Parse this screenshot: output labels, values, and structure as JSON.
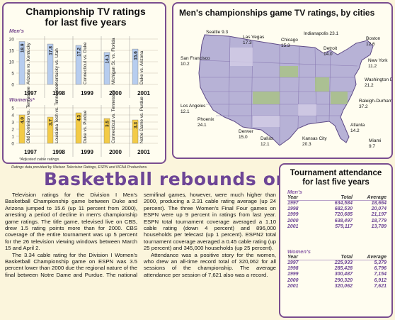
{
  "championship_chart": {
    "title_line1": "Championship TV ratings",
    "title_line2": "for last five years",
    "mens_label": "Men's",
    "womens_label": "Women's*",
    "footnote": "*Adjusted cable ratings.",
    "colors": {
      "mens_bar": "#b7cdef",
      "womens_bar": "#f3cb47",
      "accent": "#7a4d8f"
    }
  },
  "chart_data": [
    {
      "type": "bar",
      "title": "Men's",
      "categories": [
        "1997",
        "1998",
        "1999",
        "2000",
        "2001"
      ],
      "values": [
        18.9,
        17.8,
        17.2,
        14.1,
        15.6
      ],
      "data_labels": [
        "18.9",
        "17.8",
        "17.2",
        "14.1",
        "15.6"
      ],
      "matchups": [
        "Arizona vs. Kentucky",
        "Kentucky vs. Utah",
        "Connecticut vs. Duke",
        "Michigan St. vs. Florida",
        "Duke vs. Arizona"
      ],
      "yticks": [
        "20",
        "15",
        "10",
        "5",
        "0"
      ],
      "ylim": [
        0,
        20
      ],
      "grid": true
    },
    {
      "type": "bar",
      "title": "Women's*",
      "categories": [
        "1997",
        "1998",
        "1999",
        "2000",
        "2001"
      ],
      "values": [
        4.0,
        3.7,
        4.3,
        3.5,
        3.3
      ],
      "data_labels": [
        "4.0",
        "3.7",
        "4.3",
        "3.5",
        "3.3"
      ],
      "matchups": [
        "Old Dominion vs. Tennessee",
        "Louisiana Tech vs. Tennessee",
        "Duke vs. Purdue",
        "Connecticut vs. Tennessee",
        "Notre Dame vs. Purdue"
      ],
      "yticks": [
        "5",
        "4",
        "3",
        "2",
        "1",
        "0"
      ],
      "ylim": [
        0,
        5
      ],
      "grid": true
    }
  ],
  "map": {
    "title": "Men's championships game TV ratings, by cities",
    "cities": [
      {
        "name": "Seattle",
        "rating": "9.3"
      },
      {
        "name": "Las Vegas",
        "rating": "17.3"
      },
      {
        "name": "Chicago",
        "rating": "15.3"
      },
      {
        "name": "Indianapolis",
        "rating": "23.1"
      },
      {
        "name": "Boston",
        "rating": "12.6"
      },
      {
        "name": "Detroit",
        "rating": "14.0"
      },
      {
        "name": "New York",
        "rating": "11.2"
      },
      {
        "name": "San Francisco",
        "rating": "10.2"
      },
      {
        "name": "Washington D.C.",
        "rating": "21.2"
      },
      {
        "name": "Los Angeles",
        "rating": "12.1"
      },
      {
        "name": "Raleigh-Durham",
        "rating": "37.2"
      },
      {
        "name": "Phoenix",
        "rating": "24.1"
      },
      {
        "name": "Atlanta",
        "rating": "14.2"
      },
      {
        "name": "Denver",
        "rating": "15.0"
      },
      {
        "name": "Dallas",
        "rating": "12.1"
      },
      {
        "name": "Kansas City",
        "rating": "20.3"
      },
      {
        "name": "Miami",
        "rating": "9.7"
      }
    ]
  },
  "credits": "Ratings data provided by Nielsen Television Ratings, ESPN and NCAA Productions.",
  "headline": "Basketball rebounds on TV",
  "article": {
    "p1": "Television ratings for the Division I Men's Basketball Championship game between Duke and Arizona jumped to 15.6 (up 11 percent from 2000), arresting a period of decline in men's championship game ratings. The title game, televised live on CBS, drew 1.5 rating points more than for 2000. CBS coverage of the entire tournament was up 5 percent for the 26 television viewing windows between March 15 and April 2.",
    "p2": "The 3.34 cable rating for the Division I Women's Basketball Championship game on ESPN was 3.5 percent lower than 2000 due the regional nature of the final between Notre Dame and Purdue. The national semifinal games, however, were much higher than 2000, producing a 2.31 cable rating average (up 24 percent). The three Women's Final Four games on ESPN were up 9 percent in ratings from last year. ESPN total tournament coverage averaged a 1.10 cable rating (down 4 percent) and 896,000 households per telecast (up 1 percent). ESPN2 total tournament coverage averaged a 0.45 cable rating (up 25 percent) and 345,000 households (up 25 percent).",
    "p3": "Attendance was a positive story for the women, who drew an all-time record total of 320,062 for all sessions of the championship. The average attendance per session of 7,621 also was a record."
  },
  "attendance": {
    "title_line1": "Tournament attendance",
    "title_line2": "for last five years",
    "mens_label": "Men's",
    "womens_label": "Women's",
    "headers": {
      "year": "Year",
      "total": "Total",
      "average": "Average"
    },
    "mens_rows": [
      {
        "year": "1997",
        "total": "634,584",
        "average": "18,664"
      },
      {
        "year": "1998",
        "total": "682,530",
        "average": "20,074"
      },
      {
        "year": "1999",
        "total": "720,685",
        "average": "21,197"
      },
      {
        "year": "2000",
        "total": "638,497",
        "average": "18,779"
      },
      {
        "year": "2001",
        "total": "579,117",
        "average": "13,789"
      }
    ],
    "womens_rows": [
      {
        "year": "1997",
        "total": "225,933",
        "average": "5,379"
      },
      {
        "year": "1998",
        "total": "285,428",
        "average": "6,796"
      },
      {
        "year": "1999",
        "total": "300,487",
        "average": "7,154"
      },
      {
        "year": "2000",
        "total": "290,320",
        "average": "6,912"
      },
      {
        "year": "2001",
        "total": "320,062",
        "average": "7,621"
      }
    ]
  }
}
